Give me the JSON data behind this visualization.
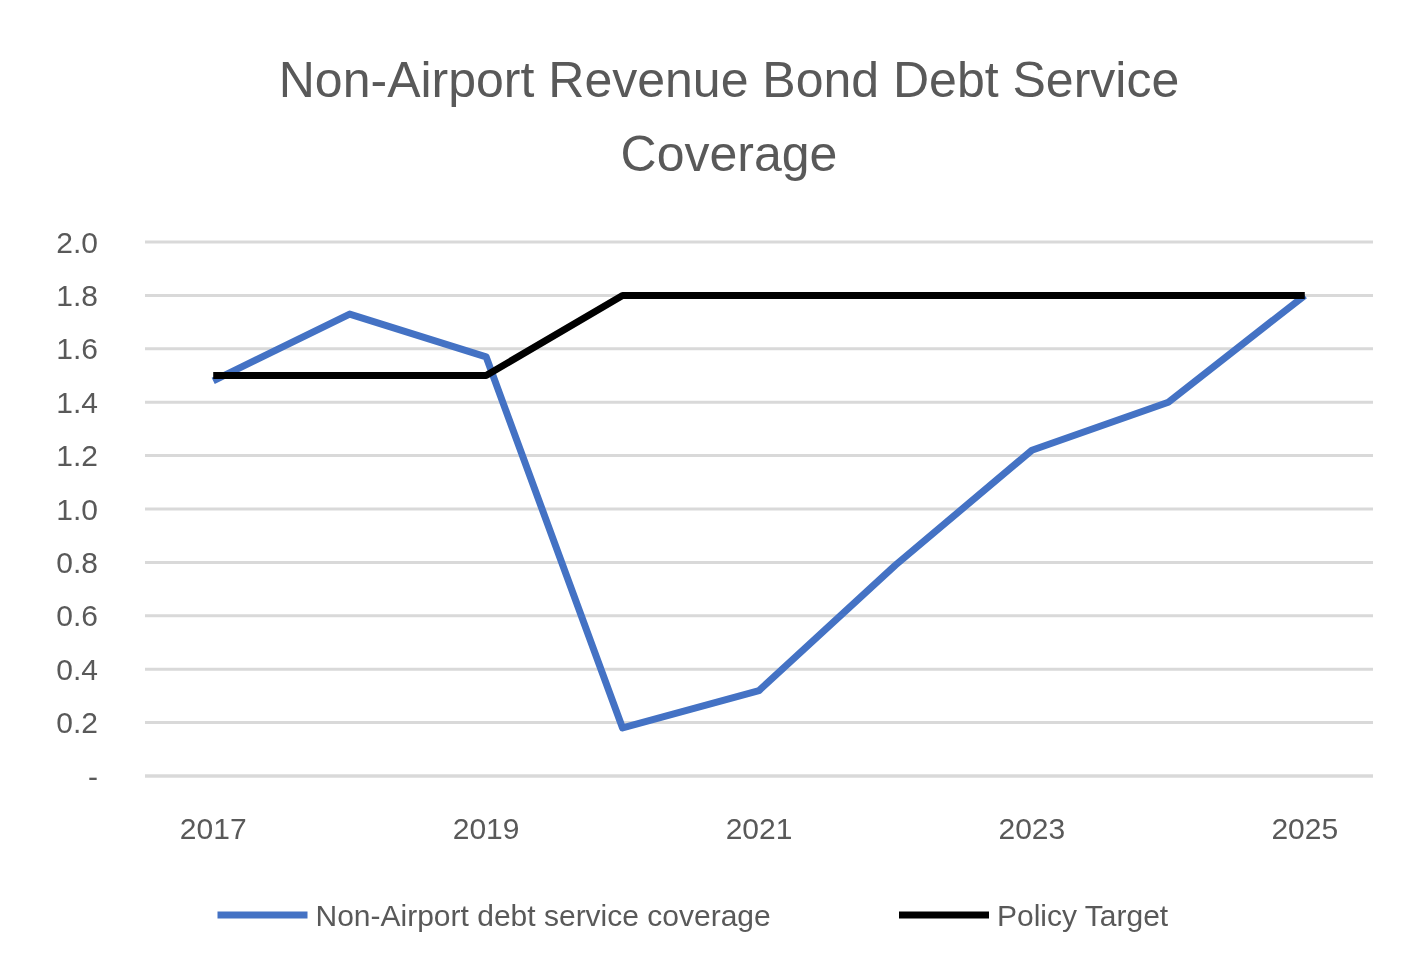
{
  "chart_data": {
    "type": "line",
    "title": "Non-Airport Revenue Bond Debt Service Coverage",
    "categories": [
      "2017",
      null,
      "2019",
      null,
      "2021",
      null,
      "2023",
      null,
      "2025"
    ],
    "series": [
      {
        "name": "Non-Airport debt service coverage",
        "color": "#4472c4",
        "values": [
          1.48,
          1.73,
          1.57,
          0.18,
          0.32,
          0.79,
          1.22,
          1.4,
          1.8
        ]
      },
      {
        "name": "Policy Target",
        "color": "#000000",
        "values": [
          1.5,
          1.5,
          1.5,
          1.8,
          1.8,
          1.8,
          1.8,
          1.8,
          1.8
        ]
      }
    ],
    "ylim": [
      0,
      2
    ],
    "yticks": [
      {
        "value": 0,
        "label": "-"
      },
      {
        "value": 0.2,
        "label": "0.2"
      },
      {
        "value": 0.4,
        "label": "0.4"
      },
      {
        "value": 0.6,
        "label": "0.6"
      },
      {
        "value": 0.8,
        "label": "0.8"
      },
      {
        "value": 1,
        "label": "1.0"
      },
      {
        "value": 1.2,
        "label": "1.2"
      },
      {
        "value": 1.4,
        "label": "1.4"
      },
      {
        "value": 1.6,
        "label": "1.6"
      },
      {
        "value": 1.8,
        "label": "1.8"
      },
      {
        "value": 2,
        "label": "2.0"
      }
    ],
    "grid": "y",
    "legend": "bottom",
    "marker": "none",
    "line_style": "solid"
  }
}
